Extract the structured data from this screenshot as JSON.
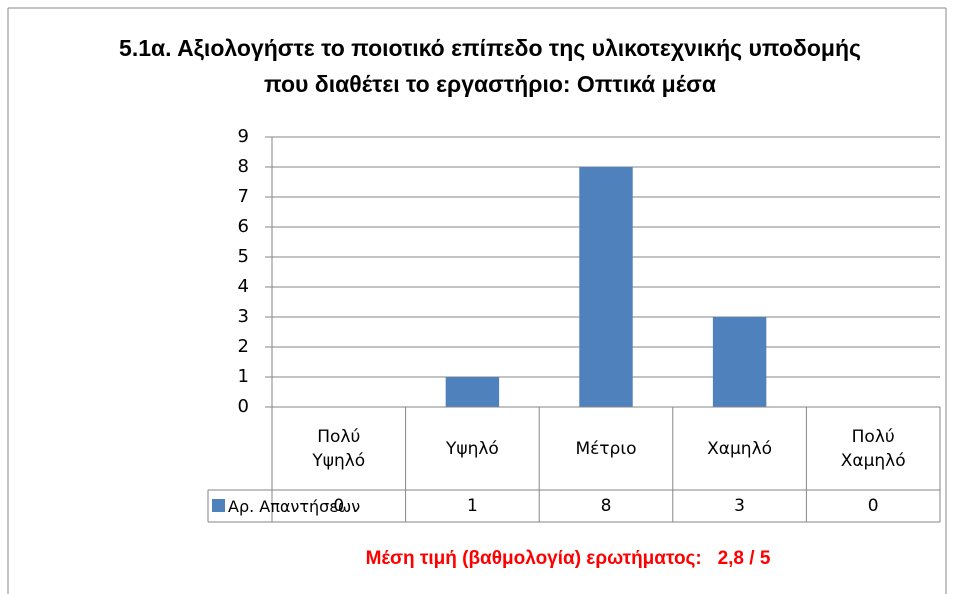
{
  "chart_data": {
    "type": "bar",
    "title": "5.1α. Αξιολογήστε το ποιοτικό επίπεδο της υλικοτεχνικής υποδομής που διαθέτει το εργαστήριο: Οπτικά μέσα",
    "categories": [
      "Πολύ Υψηλό",
      "Υψηλό",
      "Μέτριο",
      "Χαμηλό",
      "Πολύ Χαμηλό"
    ],
    "series": [
      {
        "name": "Αρ. Απαντήσεων",
        "color": "#4f81bd",
        "values": [
          0,
          1,
          8,
          3,
          0
        ]
      }
    ],
    "ylim": [
      0,
      9
    ],
    "yticks": [
      0,
      1,
      2,
      3,
      4,
      5,
      6,
      7,
      8,
      9
    ],
    "grid": true,
    "annotation": "Μέση τιμή (βαθμολογία) ερωτήματος:   2,8 / 5"
  }
}
